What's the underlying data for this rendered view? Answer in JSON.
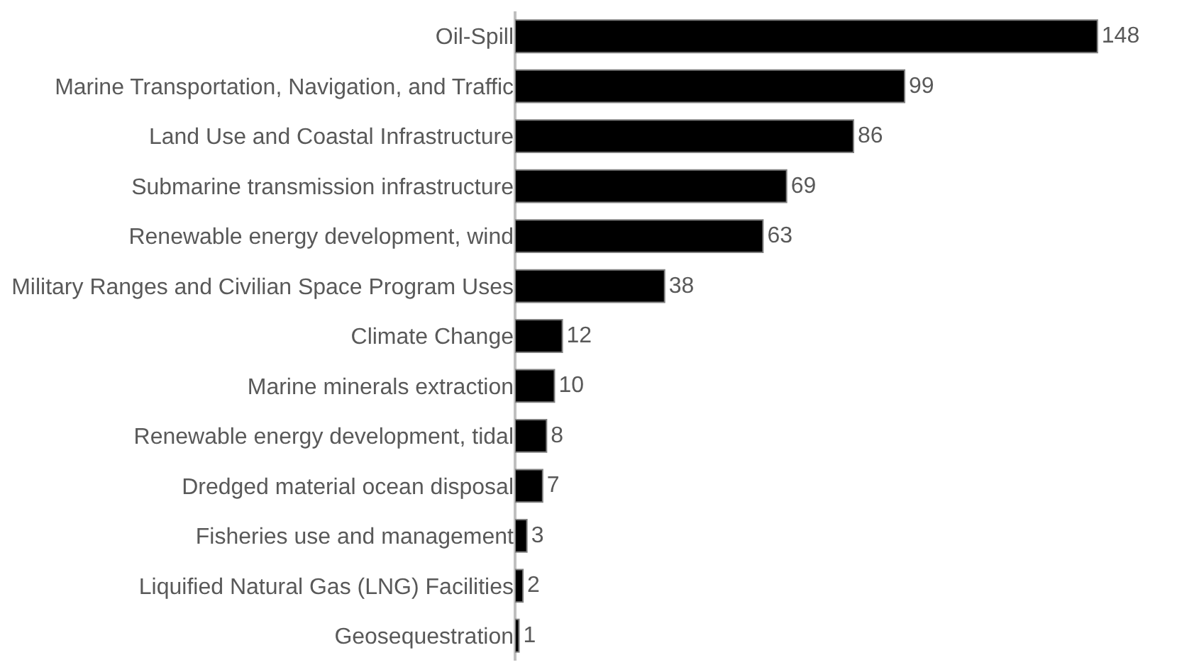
{
  "chart_data": {
    "type": "bar",
    "orientation": "horizontal",
    "categories": [
      "Oil-Spill",
      "Marine Transportation, Navigation, and Traffic",
      "Land Use and Coastal Infrastructure",
      "Submarine transmission infrastructure",
      "Renewable energy development, wind",
      "Military Ranges and Civilian Space Program Uses",
      "Climate Change",
      "Marine minerals extraction",
      "Renewable energy development, tidal",
      "Dredged material ocean disposal",
      "Fisheries use and management",
      "Liquified Natural Gas (LNG) Facilities",
      "Geosequestration"
    ],
    "values": [
      148,
      99,
      86,
      69,
      63,
      38,
      12,
      10,
      8,
      7,
      3,
      2,
      1
    ],
    "color": "#000000",
    "data_labels": true,
    "grid": false,
    "legend": false
  }
}
